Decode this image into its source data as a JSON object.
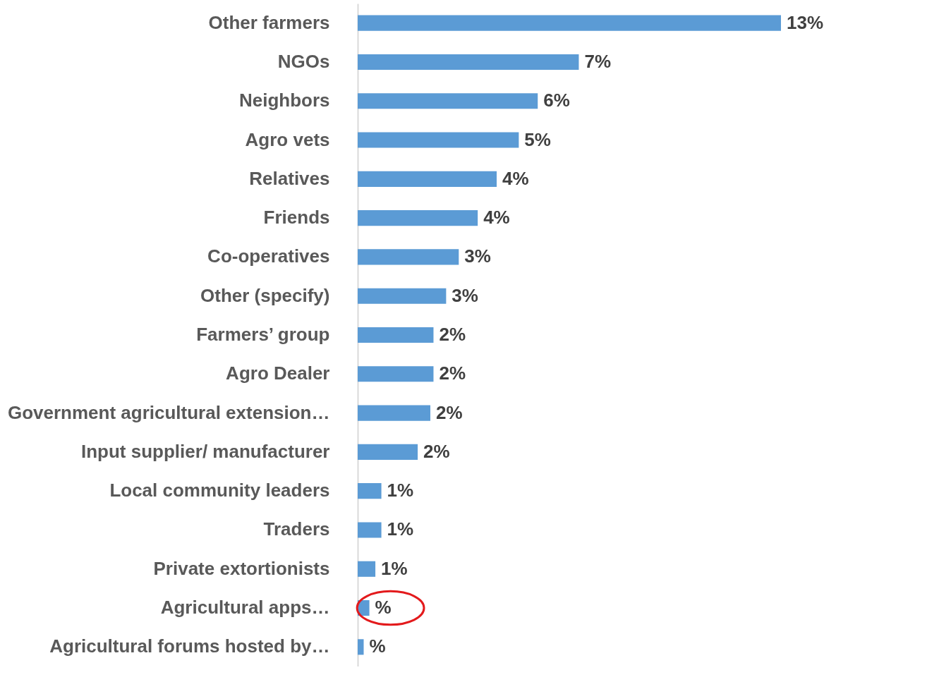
{
  "chart_data": {
    "type": "bar",
    "orientation": "horizontal",
    "categories": [
      "Other farmers",
      "NGOs",
      "Neighbors",
      "Agro vets",
      "Relatives",
      "Friends",
      "Co-operatives",
      "Other (specify)",
      "Farmers’ group",
      "Agro Dealer",
      "Government agricultural extension…",
      "Input supplier/ manufacturer",
      "Local community leaders",
      "Traders",
      "Private extortionists",
      "Agricultural apps…",
      "Agricultural forums hosted by…"
    ],
    "values": [
      13.4,
      7.0,
      5.7,
      5.1,
      4.4,
      3.8,
      3.2,
      2.8,
      2.4,
      2.4,
      2.3,
      1.9,
      0.75,
      0.75,
      0.56,
      0.37,
      0.19
    ],
    "value_labels": [
      "13%",
      "7%",
      "6%",
      "5%",
      "4%",
      "4%",
      "3%",
      "3%",
      "2%",
      "2%",
      "2%",
      "2%",
      "1%",
      "1%",
      "1%",
      "%",
      "%"
    ],
    "color": "#5b9bd5",
    "xlim": [
      0,
      13.4
    ]
  }
}
